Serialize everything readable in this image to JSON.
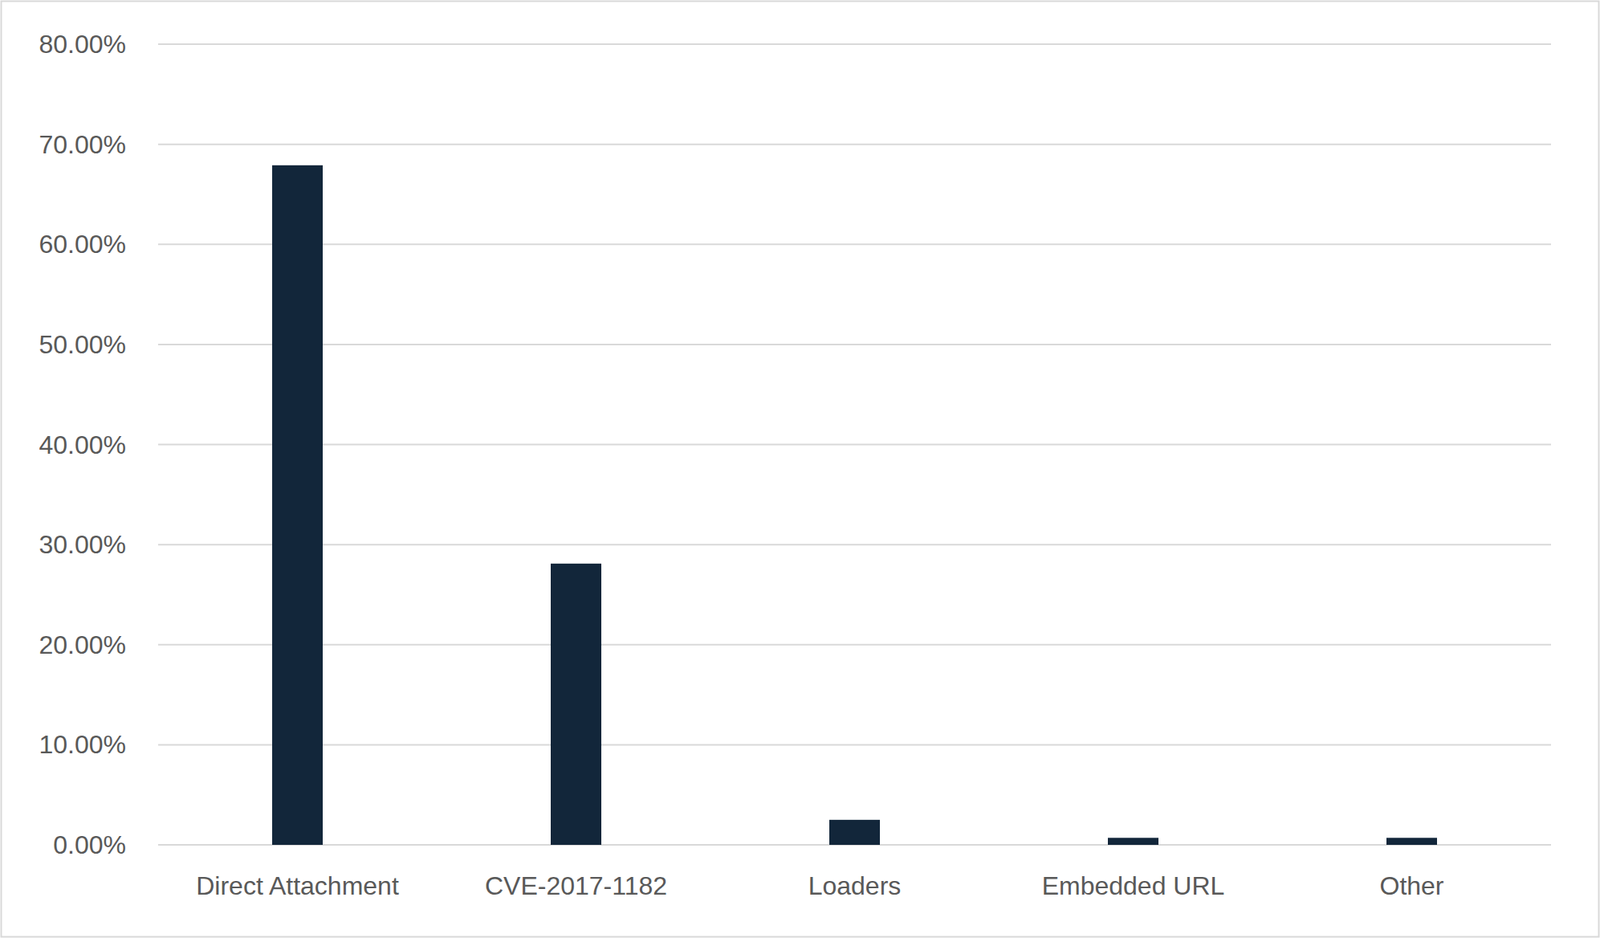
{
  "chart_data": {
    "type": "bar",
    "categories": [
      "Direct Attachment",
      "CVE-2017-1182",
      "Loaders",
      "Embedded URL",
      "Other"
    ],
    "values": [
      67.9,
      28.1,
      2.5,
      0.7,
      0.7
    ],
    "color": "#12263a",
    "ylim": [
      0,
      80
    ],
    "yticks": [
      {
        "value": 0,
        "label": "0.00%"
      },
      {
        "value": 10,
        "label": "10.00%"
      },
      {
        "value": 20,
        "label": "20.00%"
      },
      {
        "value": 30,
        "label": "30.00%"
      },
      {
        "value": 40,
        "label": "40.00%"
      },
      {
        "value": 50,
        "label": "50.00%"
      },
      {
        "value": 60,
        "label": "60.00%"
      },
      {
        "value": 70,
        "label": "70.00%"
      },
      {
        "value": 80,
        "label": "80.00%"
      }
    ],
    "grid": true
  }
}
